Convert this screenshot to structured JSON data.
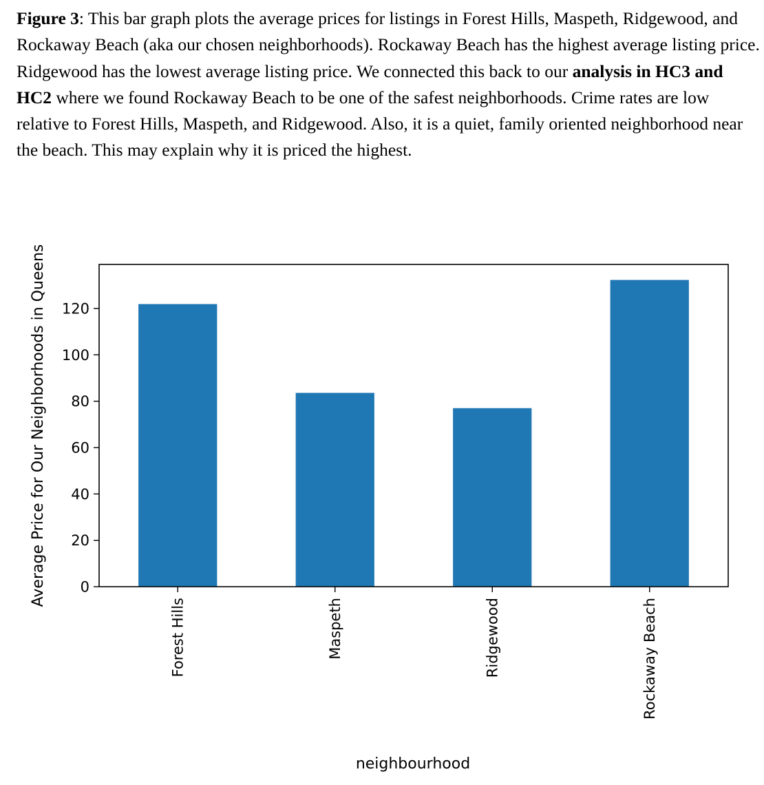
{
  "caption": {
    "label": "Figure 3",
    "part1": ": This bar graph plots the average prices for listings in Forest Hills, Maspeth, Ridgewood, and Rockaway Beach (aka our chosen neighborhoods). Rockaway Beach has the highest average listing price. Ridgewood has the lowest average listing price. We connected this back to our ",
    "bold": "analysis in HC3 and HC2",
    "part2": " where we found Rockaway Beach to be one of the safest neighborhoods. Crime rates are low relative to Forest Hills, Maspeth, and Ridgewood. Also, it is a quiet, family oriented neighborhood near the beach. This may explain why it is priced the highest."
  },
  "chart_data": {
    "type": "bar",
    "categories": [
      "Forest Hills",
      "Maspeth",
      "Ridgewood",
      "Rockaway Beach"
    ],
    "values": [
      121.9,
      83.6,
      77.0,
      132.3
    ],
    "xlabel": "neighbourhood",
    "ylabel": "Average Price for Our Neighborhoods in Queens",
    "yticks": [
      0,
      20,
      40,
      60,
      80,
      100,
      120
    ],
    "ylim": [
      0,
      139
    ],
    "grid": false,
    "bar_color": "#1f77b4"
  }
}
